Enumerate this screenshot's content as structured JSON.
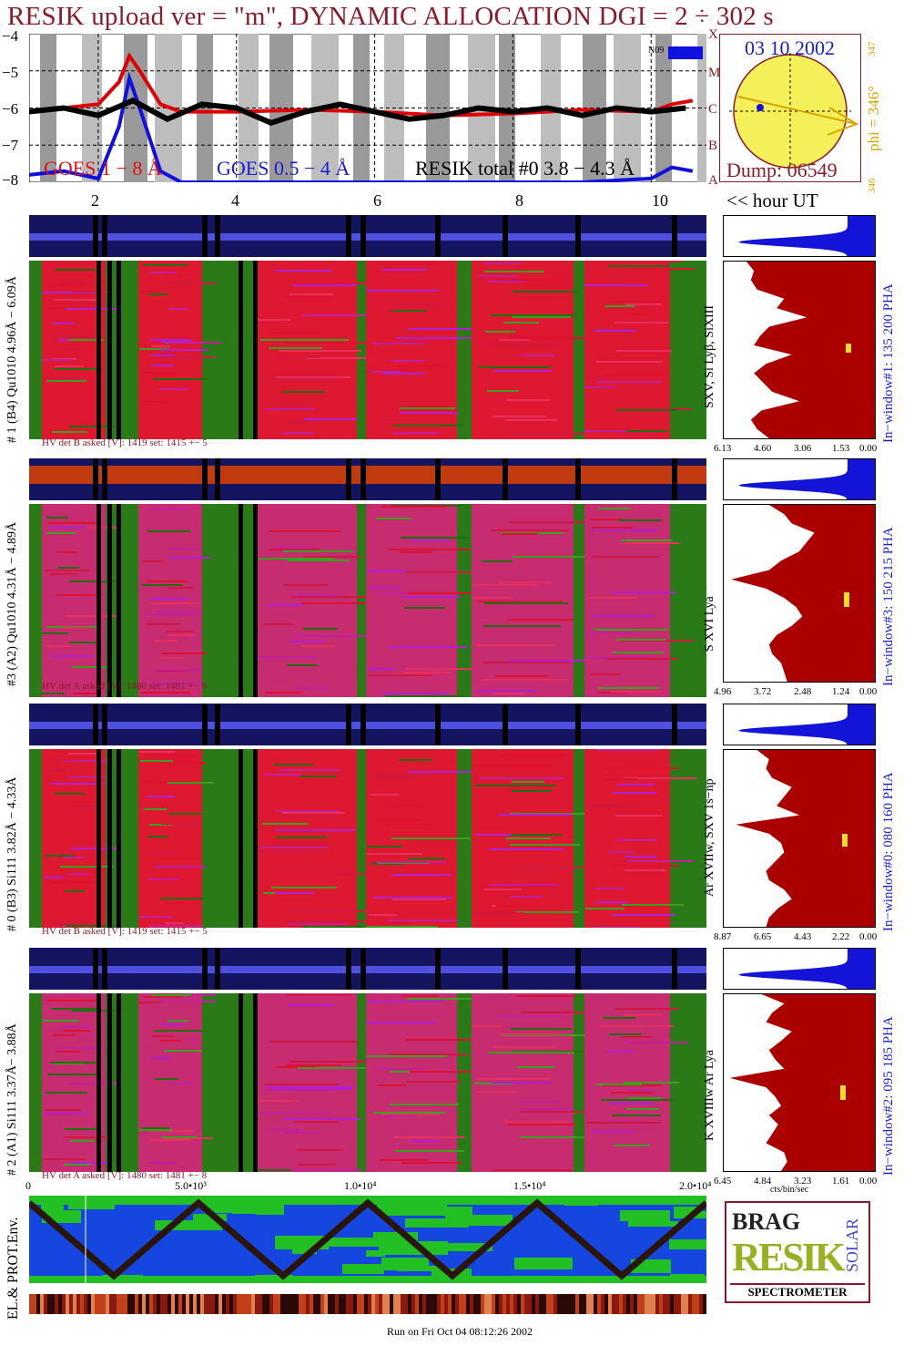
{
  "title": "RESIK upload ver = \"m\", DYNAMIC ALLOCATION  DGI =   2 ÷ 302 s",
  "goes": {
    "y_ticks": [
      "−4",
      "−5",
      "−6",
      "−7",
      "−8"
    ],
    "class_letters": [
      "X",
      "M",
      "C",
      "B",
      "A"
    ],
    "legend_goes1": "GOES 1 − 8 Å",
    "legend_goes2": "GOES 0.5 − 4 Å",
    "legend_resik": "RESIK total #0 3.8 − 4.3 Å",
    "n_label": "N09",
    "x_ticks": [
      "2",
      "4",
      "6",
      "8",
      "10"
    ],
    "hour_ut": "<< hour UT"
  },
  "sun": {
    "date": "03 10 2002",
    "dump": "Dump: 06549",
    "phi": "phi = 346°",
    "phi_top": "347",
    "phi_bottom": "346"
  },
  "panels": [
    {
      "id": "p1",
      "ylabel": "# 1 (B4) Qu1010 4.96Å − 6.09Å",
      "line_label": "SXV, Si Lyβ, SiXIII",
      "window_label": "In−window#1:  135 200 PHA",
      "hv": "HV det B asked [V]:  1419 set:  1415 +−    5",
      "pha_ticks": [
        "6.13",
        "4.60",
        "3.06",
        "1.53",
        "0.00"
      ],
      "accent": "#b00000"
    },
    {
      "id": "p2",
      "ylabel": "#3 (A2) Qu1010  4.31Å − 4.89Å",
      "line_label": "S XVI Lya",
      "window_label": "In−window#3:  150 215 PHA",
      "hv": "HV det A asked [V]:  1480 set:  1481 +−    8",
      "pha_ticks": [
        "4.96",
        "3.72",
        "2.48",
        "1.24",
        "0.00"
      ],
      "accent": "#b00000"
    },
    {
      "id": "p3",
      "ylabel": "# 0 (B3) Si111  3.82Å − 4.33Å",
      "line_label": "Ar XVIIw,  SXV 1s−np",
      "window_label": "In−window#0:  080 160 PHA",
      "hv": "HV det B asked [V]:  1419 set:  1415 +−    5",
      "pha_ticks": [
        "8.87",
        "6.65",
        "4.43",
        "2.22",
        "0.00"
      ],
      "accent": "#b00000"
    },
    {
      "id": "p4",
      "ylabel": "# 2 (A1) Si111  3.37Å− 3.88Å",
      "line_label": "K XVIIIw  Ar Lya",
      "window_label": "In−window#2:  095 185 PHA",
      "hv": "HV det A asked [V]:  1480 set:  1481 +−    8",
      "pha_ticks": [
        "6.45",
        "4.84",
        "3.23",
        "1.61",
        "0.00"
      ],
      "accent": "#b00000"
    }
  ],
  "pha_unit": "cts/bin/sec",
  "env": {
    "ylabel": "EL.& PROT.Env.",
    "x_ticks": [
      "0",
      "5.0•10³",
      "1.0•10⁴",
      "1.5•10⁴",
      "2.0•10⁴"
    ]
  },
  "logo": {
    "top": "BRAG",
    "side": "SOLAR",
    "main": "RESIK",
    "bottom": "SPECTROMETER"
  },
  "footer": "Run on Fri Oct 04 08:12:26 2002",
  "colors": {
    "title": "#8b1a2b",
    "goes_long": "#e00000",
    "goes_short": "#1010e0",
    "resik": "#000000",
    "sun_fill": "#f4f05a",
    "sun_arrow": "#d9a400",
    "pha_fill": "#aa0000",
    "pha_top": "#1414d8"
  },
  "chart_data": [
    {
      "type": "line",
      "ylabel": "",
      "ylim": [
        -8,
        -4
      ],
      "xlim": [
        1,
        10.8
      ],
      "series": [
        {
          "name": "GOES 1 − 8 Å",
          "x": [
            1,
            1.5,
            2,
            2.3,
            2.45,
            2.6,
            2.9,
            3.2,
            4,
            5,
            6,
            7,
            8,
            9,
            10,
            10.3,
            10.6
          ],
          "y": [
            -6.1,
            -6.0,
            -5.9,
            -5.3,
            -4.6,
            -5.0,
            -5.9,
            -6.1,
            -6.1,
            -6.05,
            -6.1,
            -6.2,
            -6.15,
            -6.05,
            -6.1,
            -5.9,
            -5.8
          ]
        },
        {
          "name": "GOES 0.5 − 4 Å",
          "x": [
            1,
            1.5,
            2,
            2.3,
            2.45,
            2.6,
            2.9,
            3.2,
            4,
            5,
            6,
            7,
            8,
            9,
            10,
            10.3,
            10.6
          ],
          "y": [
            -7.8,
            -7.7,
            -7.9,
            -6.5,
            -5.2,
            -6.0,
            -7.7,
            -8.0,
            -8.0,
            -8.0,
            -8.0,
            -8.0,
            -8.0,
            -8.0,
            -7.9,
            -7.6,
            -7.7
          ]
        },
        {
          "name": "RESIK total #0 3.8 − 4.3 Å",
          "x": [
            1,
            1.5,
            2,
            2.5,
            3,
            3.5,
            4,
            4.5,
            5,
            5.5,
            6,
            6.5,
            7,
            7.5,
            8,
            8.5,
            9,
            9.5,
            10,
            10.5
          ],
          "y": [
            -6.1,
            -6.0,
            -6.2,
            -5.8,
            -6.3,
            -5.9,
            -6.0,
            -6.4,
            -6.1,
            -5.9,
            -6.1,
            -6.3,
            -6.2,
            -6.0,
            -6.1,
            -6.0,
            -6.2,
            -6.0,
            -6.1,
            -6.0
          ]
        }
      ]
    },
    {
      "type": "area",
      "title": "In−window#1:  135 200 PHA",
      "xlim": [
        6.13,
        0
      ],
      "profile": [
        0.85,
        0.8,
        0.82,
        0.78,
        0.6,
        0.65,
        0.45,
        0.7,
        0.76,
        0.8,
        0.55,
        0.72,
        0.8,
        0.74,
        0.68,
        0.5,
        0.75,
        0.82,
        0.78,
        0.7
      ]
    },
    {
      "type": "area",
      "title": "In−window#3:  150 215 PHA",
      "xlim": [
        4.96,
        0
      ],
      "profile": [
        0.7,
        0.6,
        0.55,
        0.4,
        0.45,
        0.5,
        0.62,
        0.7,
        0.95,
        0.72,
        0.6,
        0.52,
        0.48,
        0.55,
        0.65,
        0.7,
        0.68,
        0.62,
        0.6,
        0.58
      ]
    },
    {
      "type": "area",
      "title": "In−window#0:  080 160 PHA",
      "xlim": [
        8.87,
        0
      ],
      "profile": [
        0.78,
        0.7,
        0.72,
        0.68,
        0.55,
        0.6,
        0.65,
        0.5,
        0.92,
        0.7,
        0.62,
        0.6,
        0.66,
        0.72,
        0.7,
        0.6,
        0.55,
        0.64,
        0.7,
        0.72
      ]
    },
    {
      "type": "area",
      "title": "In−window#2:  095 185 PHA",
      "xlim": [
        6.45,
        0
      ],
      "profile": [
        0.75,
        0.6,
        0.68,
        0.72,
        0.55,
        0.62,
        0.7,
        0.66,
        0.6,
        0.96,
        0.72,
        0.66,
        0.62,
        0.7,
        0.64,
        0.68,
        0.72,
        0.6,
        0.58,
        0.62
      ]
    },
    {
      "type": "line",
      "xlim": [
        0,
        20000
      ],
      "series": [
        {
          "name": "",
          "x": [
            0,
            2500,
            5000,
            7500,
            10000,
            12500,
            15000,
            17500,
            20000
          ],
          "y": [
            1,
            0,
            1,
            0,
            1,
            0,
            1,
            0,
            1
          ]
        }
      ]
    }
  ]
}
